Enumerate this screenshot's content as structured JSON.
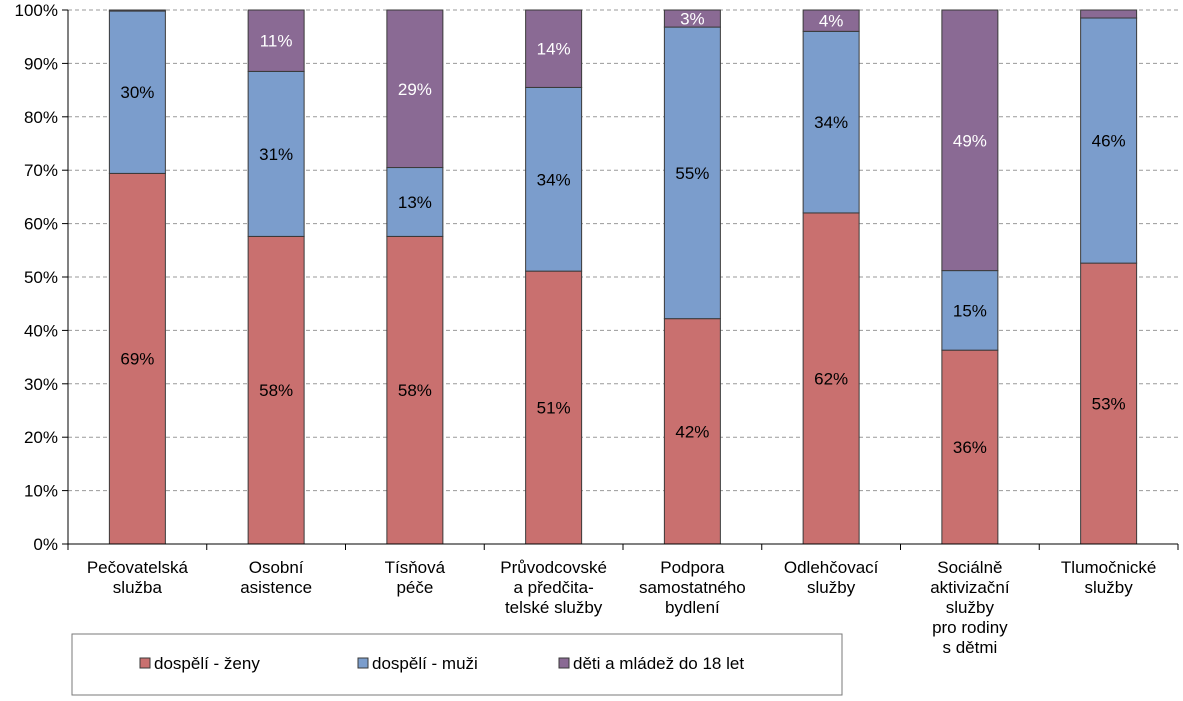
{
  "chart_data": {
    "type": "bar",
    "stacked": true,
    "percent_stacked": true,
    "categories": [
      [
        "Pečovatelská",
        "služba"
      ],
      [
        "Osobní",
        "asistence"
      ],
      [
        "Tísňová",
        "péče"
      ],
      [
        "Průvodcovské",
        "a předčita-",
        "telské služby"
      ],
      [
        "Podpora",
        "samostatného",
        "bydlení"
      ],
      [
        "Odlehčovací",
        "služby"
      ],
      [
        "Sociálně",
        "aktivizační",
        "služby",
        "pro rodiny",
        "s dětmi"
      ],
      [
        "Tlumočnické",
        "služby"
      ]
    ],
    "series": [
      {
        "name": "dospělí - ženy",
        "color": "#c9706f",
        "values": [
          69.4,
          57.6,
          57.6,
          51.1,
          42.2,
          62.0,
          36.3,
          52.6
        ],
        "labels": [
          "69%",
          "58%",
          "58%",
          "51%",
          "42%",
          "62%",
          "36%",
          "53%"
        ]
      },
      {
        "name": "dospělí - muži",
        "color": "#7b9dcc",
        "values": [
          30.4,
          30.9,
          12.9,
          34.4,
          54.6,
          34.0,
          14.9,
          45.9
        ],
        "labels": [
          "30%",
          "31%",
          "13%",
          "34%",
          "55%",
          "34%",
          "15%",
          "46%"
        ]
      },
      {
        "name": "děti a mládež do 18 let",
        "color": "#8a6a94",
        "values": [
          0.2,
          11.5,
          29.5,
          14.5,
          3.2,
          4.0,
          48.8,
          1.5
        ],
        "labels": [
          "",
          "11%",
          "29%",
          "14%",
          "3%",
          "4%",
          "49%",
          ""
        ]
      }
    ],
    "yticks": [
      "0%",
      "10%",
      "20%",
      "30%",
      "40%",
      "50%",
      "60%",
      "70%",
      "80%",
      "90%",
      "100%"
    ],
    "ylim": [
      0,
      100
    ],
    "grid": true,
    "legend_position": "bottom"
  }
}
